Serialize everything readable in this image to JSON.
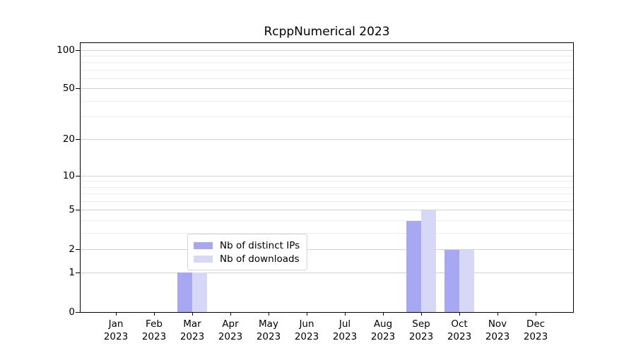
{
  "title": "RcppNumerical 2023",
  "chart_data": {
    "type": "bar",
    "title": "RcppNumerical 2023",
    "yscale": "log1p",
    "grid": true,
    "categories": [
      "Jan 2023",
      "Feb 2023",
      "Mar 2023",
      "Apr 2023",
      "May 2023",
      "Jun 2023",
      "Jul 2023",
      "Aug 2023",
      "Sep 2023",
      "Oct 2023",
      "Nov 2023",
      "Dec 2023"
    ],
    "series": [
      {
        "name": "Nb of distinct IPs",
        "color": "#a8a8f2",
        "values": [
          0,
          0,
          1,
          0,
          0,
          0,
          0,
          0,
          4,
          2,
          0,
          0
        ]
      },
      {
        "name": "Nb of downloads",
        "color": "#d7d7f7",
        "values": [
          0,
          0,
          1,
          0,
          0,
          0,
          0,
          0,
          5,
          2,
          0,
          0
        ]
      }
    ],
    "ylim": [
      0,
      115
    ],
    "yticks": [
      0,
      1,
      2,
      5,
      10,
      20,
      50,
      100
    ],
    "yticks_minor": [
      3,
      4,
      6,
      7,
      8,
      9,
      30,
      40,
      60,
      70,
      80,
      90
    ],
    "legend_position": "lower center"
  },
  "colors": {
    "background": "#ffffff",
    "axis": "#000000",
    "grid_major": "#d2d2d2",
    "grid_minor": "#ededed",
    "legend_border": "#d5d5d5",
    "text": "#000000"
  }
}
